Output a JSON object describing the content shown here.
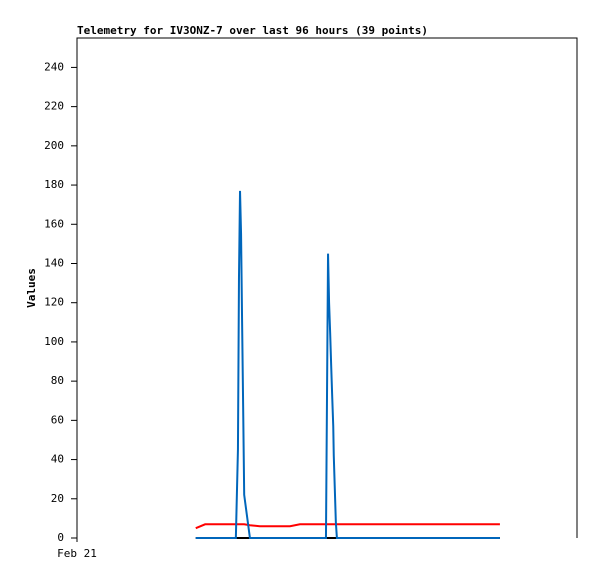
{
  "chart_data": {
    "type": "line",
    "title": "Telemetry for IV3ONZ-7 over last 96 hours (39 points)",
    "y_label": "Values",
    "x": [
      22.8,
      24.6,
      26.5,
      28.4,
      29.8,
      30.5,
      30.9,
      31.1,
      31.3,
      31.5,
      31.7,
      31.9,
      32.1,
      33.2,
      35.1,
      37.1,
      40.9,
      42.8,
      44.7,
      46.7,
      47.8,
      48.0,
      48.2,
      48.4,
      48.6,
      48.8,
      49.0,
      49.2,
      49.3,
      49.5,
      49.7,
      49.9,
      52.4,
      58.2,
      63.9,
      69.7,
      74.5,
      78.3,
      81.2
    ],
    "xlim": [
      0,
      96
    ],
    "xticks": [
      {
        "value": 0,
        "label": "Feb 21"
      }
    ],
    "ylim": [
      0,
      255
    ],
    "yticks": [
      0,
      20,
      40,
      60,
      80,
      100,
      120,
      140,
      160,
      180,
      200,
      220,
      240
    ],
    "series": [
      {
        "color": "#000000",
        "values": [
          0,
          0,
          0,
          0,
          0,
          0,
          0,
          0,
          0,
          0,
          0,
          0,
          0,
          0,
          0,
          0,
          0,
          0,
          0,
          0,
          0,
          0,
          0,
          0,
          0,
          0,
          0,
          0,
          0,
          0,
          0,
          0,
          0,
          0,
          0,
          0,
          0,
          0,
          0
        ]
      },
      {
        "color": "#ff0000",
        "values": [
          5,
          7,
          7,
          7,
          7,
          7,
          7,
          7,
          7,
          7,
          7,
          7,
          7,
          6.5,
          6,
          6,
          6,
          7,
          7,
          7,
          7,
          7,
          7,
          7,
          7,
          7,
          7,
          7,
          7,
          7,
          7,
          7,
          7,
          7,
          7,
          7,
          7,
          7,
          7
        ]
      },
      {
        "color": "#0066bb",
        "values": [
          0,
          0,
          0,
          0,
          0,
          0,
          45,
          133,
          177,
          155,
          110,
          67,
          22,
          0,
          0,
          0,
          0,
          0,
          0,
          0,
          0,
          72,
          145,
          120,
          105,
          88,
          72,
          57,
          42,
          25,
          8,
          0,
          0,
          0,
          0,
          0,
          0,
          0,
          0
        ]
      }
    ]
  }
}
